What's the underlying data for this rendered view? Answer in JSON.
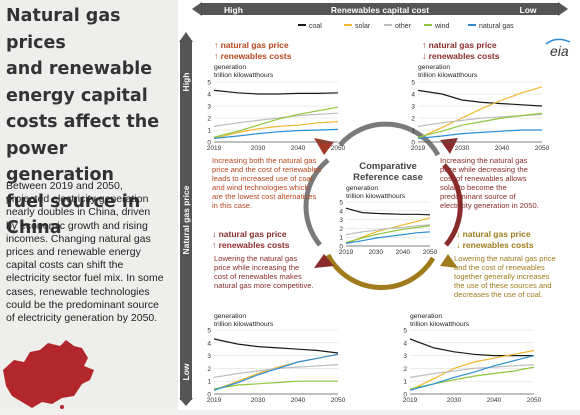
{
  "title_lines": [
    "Natural gas prices",
    "and renewable",
    "energy capital",
    "costs affect the",
    "power generation",
    "fuel source in China"
  ],
  "body_lines": [
    "Between 2019 and 2050,",
    "projected electricity generation",
    "nearly doubles in China, driven",
    "by economic growth and rising",
    "incomes. Changing natural gas",
    "prices and renewable energy",
    "capital costs can shift the",
    "electricity sector fuel mix. In some",
    "cases, renewable technologies",
    "could be the predominant source",
    "of electricity generation by 2050."
  ],
  "top_axis": {
    "high": "High",
    "label": "Renewables capital cost",
    "low": "Low"
  },
  "side_axis": {
    "high": "High",
    "label": "Natural gas price",
    "low": "Low"
  },
  "legend": [
    {
      "name": "coal",
      "color": "#1a1a1a"
    },
    {
      "name": "solar",
      "color": "#f2b630"
    },
    {
      "name": "other",
      "color": "#bdbdbd"
    },
    {
      "name": "wind",
      "color": "#8fc63d"
    },
    {
      "name": "natural gas",
      "color": "#2a8fd6"
    }
  ],
  "logo": "eia",
  "center_title_lines": [
    "Comparative",
    "Reference case"
  ],
  "panel_text": {
    "tl_head": [
      "↑ natural gas price",
      "↑ renewables costs"
    ],
    "tr_head": [
      "↑ natural gas price",
      "↓ renewables costs"
    ],
    "bl_head": [
      "↓ natural gas price",
      "↑ renewables costs"
    ],
    "br_head": [
      "↓ natural gas price",
      "↓ renewables costs"
    ],
    "tl_desc": [
      "Increasing both the natural gas",
      "price and the cost of renewables",
      "leads to increased use of coal",
      "and wind technologies which",
      "are the lowest cost alternatives",
      "in this case."
    ],
    "tr_desc": [
      "Increasing the natural gas",
      "price while decreasing the",
      "cost of renewables allows",
      "solar to become the",
      "predominant source of",
      "electricity generation in 2050."
    ],
    "bl_desc": [
      "Lowering the natural gas",
      "price while increasing the",
      "cost of renewables makes",
      "natural gas more competitive."
    ],
    "br_desc": [
      "Lowering the natural gas price",
      "and the cost of renewables",
      "together generally increases",
      "the use of these sources and",
      "decreases the use of coal."
    ]
  },
  "unit_lines": [
    "generation",
    "trillion kilowatthours"
  ],
  "chart_data": [
    {
      "id": "tl",
      "type": "line",
      "title": "",
      "xlabel": "",
      "ylabel": "generation trillion kilowatthours",
      "x": [
        2019,
        2025,
        2030,
        2035,
        2040,
        2045,
        2050
      ],
      "ylim": [
        0,
        5
      ],
      "yticks": [
        0,
        1,
        2,
        3,
        4,
        5
      ],
      "xticks": [
        2019,
        2030,
        2040,
        2050
      ],
      "grid": true,
      "series": [
        {
          "name": "coal",
          "values": [
            4.3,
            4.1,
            4.0,
            4.0,
            4.05,
            4.05,
            4.1
          ]
        },
        {
          "name": "solar",
          "values": [
            0.3,
            0.8,
            1.1,
            1.3,
            1.4,
            1.6,
            1.7
          ]
        },
        {
          "name": "other",
          "values": [
            1.3,
            1.6,
            1.8,
            2.0,
            2.2,
            2.3,
            2.4
          ]
        },
        {
          "name": "wind",
          "values": [
            0.4,
            0.9,
            1.4,
            1.9,
            2.3,
            2.6,
            2.9
          ]
        },
        {
          "name": "natural gas",
          "values": [
            0.3,
            0.5,
            0.7,
            0.85,
            0.95,
            1.0,
            1.05
          ]
        }
      ]
    },
    {
      "id": "tr",
      "type": "line",
      "title": "",
      "xlabel": "",
      "ylabel": "generation trillion kilowatthours",
      "x": [
        2019,
        2025,
        2030,
        2035,
        2040,
        2045,
        2050
      ],
      "ylim": [
        0,
        5
      ],
      "yticks": [
        0,
        1,
        2,
        3,
        4,
        5
      ],
      "xticks": [
        2019,
        2030,
        2040,
        2050
      ],
      "grid": true,
      "series": [
        {
          "name": "coal",
          "values": [
            4.3,
            4.0,
            3.5,
            3.3,
            3.2,
            3.1,
            3.0
          ]
        },
        {
          "name": "solar",
          "values": [
            0.3,
            1.2,
            2.0,
            2.8,
            3.5,
            4.1,
            4.6
          ]
        },
        {
          "name": "other",
          "values": [
            1.3,
            1.6,
            1.8,
            2.0,
            2.1,
            2.2,
            2.3
          ]
        },
        {
          "name": "wind",
          "values": [
            0.4,
            0.9,
            1.4,
            1.7,
            2.0,
            2.2,
            2.4
          ]
        },
        {
          "name": "natural gas",
          "values": [
            0.3,
            0.5,
            0.7,
            0.8,
            0.9,
            1.0,
            1.0
          ]
        }
      ]
    },
    {
      "id": "ref",
      "type": "line",
      "title": "",
      "xlabel": "",
      "ylabel": "generation trillion kilowatthours",
      "x": [
        2019,
        2025,
        2030,
        2035,
        2040,
        2045,
        2050
      ],
      "ylim": [
        0,
        5
      ],
      "yticks": [
        0,
        1,
        2,
        3,
        4,
        5
      ],
      "xticks": [
        2019,
        2030,
        2040,
        2050
      ],
      "grid": true,
      "series": [
        {
          "name": "coal",
          "values": [
            4.3,
            3.8,
            3.7,
            3.65,
            3.6,
            3.6,
            3.55
          ]
        },
        {
          "name": "solar",
          "values": [
            0.3,
            1.0,
            1.6,
            2.0,
            2.4,
            2.8,
            3.2
          ]
        },
        {
          "name": "other",
          "values": [
            1.3,
            1.6,
            1.8,
            2.0,
            2.1,
            2.3,
            2.4
          ]
        },
        {
          "name": "wind",
          "values": [
            0.4,
            0.9,
            1.3,
            1.6,
            1.9,
            2.1,
            2.3
          ]
        },
        {
          "name": "natural gas",
          "values": [
            0.3,
            0.6,
            0.9,
            1.1,
            1.3,
            1.5,
            1.6
          ]
        }
      ]
    },
    {
      "id": "bl",
      "type": "line",
      "title": "",
      "xlabel": "",
      "ylabel": "generation trillion kilowatthours",
      "x": [
        2019,
        2025,
        2030,
        2035,
        2040,
        2045,
        2050
      ],
      "ylim": [
        0,
        5
      ],
      "yticks": [
        0,
        1,
        2,
        3,
        4,
        5
      ],
      "xticks": [
        2019,
        2030,
        2040,
        2050
      ],
      "grid": true,
      "series": [
        {
          "name": "coal",
          "values": [
            4.3,
            3.9,
            3.7,
            3.6,
            3.5,
            3.4,
            3.2
          ]
        },
        {
          "name": "solar",
          "values": [
            0.3,
            1.0,
            1.6,
            2.1,
            2.5,
            2.8,
            3.1
          ]
        },
        {
          "name": "other",
          "values": [
            1.3,
            1.6,
            1.8,
            2.0,
            2.1,
            2.2,
            2.3
          ]
        },
        {
          "name": "wind",
          "values": [
            0.4,
            0.7,
            0.8,
            0.9,
            1.0,
            1.0,
            1.0
          ]
        },
        {
          "name": "natural gas",
          "values": [
            0.3,
            0.9,
            1.5,
            2.0,
            2.5,
            2.8,
            3.1
          ]
        }
      ]
    },
    {
      "id": "br",
      "type": "line",
      "title": "",
      "xlabel": "",
      "ylabel": "generation trillion kilowatthours",
      "x": [
        2019,
        2025,
        2030,
        2035,
        2040,
        2045,
        2050
      ],
      "ylim": [
        0,
        5
      ],
      "yticks": [
        0,
        1,
        2,
        3,
        4,
        5
      ],
      "xticks": [
        2019,
        2030,
        2040,
        2050
      ],
      "grid": true,
      "series": [
        {
          "name": "coal",
          "values": [
            4.3,
            3.6,
            3.3,
            3.1,
            3.0,
            3.0,
            3.0
          ]
        },
        {
          "name": "solar",
          "values": [
            0.3,
            1.2,
            2.0,
            2.5,
            2.8,
            3.1,
            3.4
          ]
        },
        {
          "name": "other",
          "values": [
            1.3,
            1.6,
            1.8,
            2.0,
            2.1,
            2.2,
            2.3
          ]
        },
        {
          "name": "wind",
          "values": [
            0.4,
            0.8,
            1.1,
            1.4,
            1.6,
            1.8,
            2.1
          ]
        },
        {
          "name": "natural gas",
          "values": [
            0.3,
            0.8,
            1.3,
            1.7,
            2.2,
            2.6,
            3.0
          ]
        }
      ]
    }
  ]
}
